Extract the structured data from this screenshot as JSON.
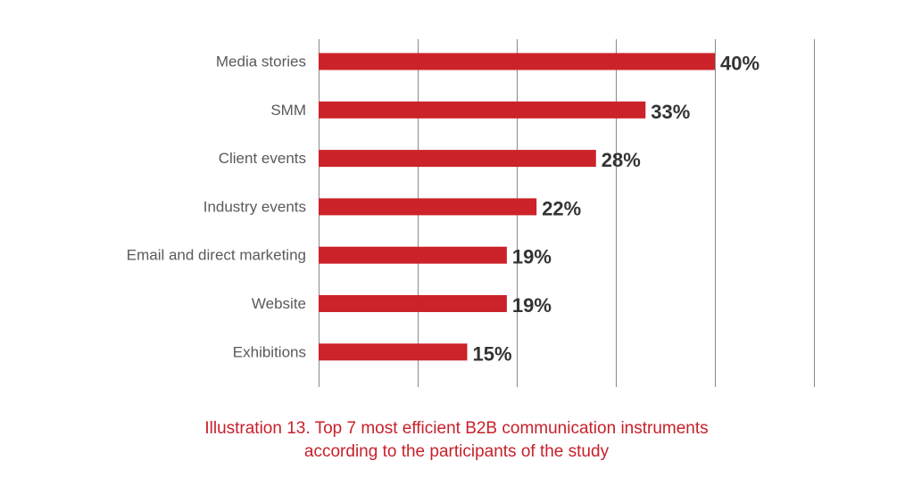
{
  "chart_data": {
    "type": "bar",
    "orientation": "horizontal",
    "categories": [
      "Media stories",
      "SMM",
      "Client events",
      "Industry events",
      "Email and direct marketing",
      "Website",
      "Exhibitions"
    ],
    "values": [
      40,
      33,
      28,
      22,
      19,
      19,
      15
    ],
    "value_labels": [
      "40%",
      "33%",
      "28%",
      "22%",
      "19%",
      "19%",
      "15%"
    ],
    "xlim": [
      0,
      50
    ],
    "grid": true,
    "bar_color": "#cc2229"
  },
  "caption": {
    "line1": "Illustration 13. Top 7 most efficient B2B communication instruments",
    "line2": "according to the participants of the study",
    "color": "#c8202b"
  }
}
